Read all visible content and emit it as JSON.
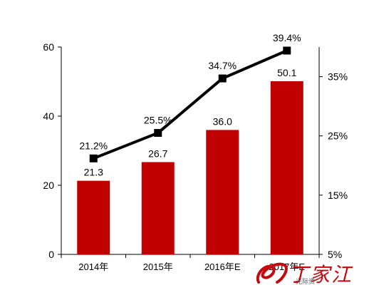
{
  "colors": {
    "bar": "#c00000",
    "line": "#000000",
    "axis": "#000000",
    "watermark": "#c3090d"
  },
  "watermark": {
    "text": "丁家江",
    "sub": "光际资"
  },
  "chart_data": {
    "type": "bar",
    "categories": [
      "2014年",
      "2015年",
      "2016年E",
      "2017年E"
    ],
    "series": [
      {
        "type": "bar",
        "axis": "left",
        "values": [
          21.3,
          26.7,
          36.0,
          50.1
        ],
        "labels": [
          "21.3",
          "26.7",
          "36.0",
          "50.1"
        ]
      },
      {
        "type": "line",
        "axis": "right",
        "values": [
          21.2,
          25.5,
          34.7,
          39.4
        ],
        "labels": [
          "21.2%",
          "25.5%",
          "34.7%",
          "39.4%"
        ],
        "marker": "square"
      }
    ],
    "y_left": {
      "min": 0,
      "max": 60,
      "ticks": [
        0,
        20,
        40,
        60
      ],
      "tick_labels": [
        "0",
        "20",
        "40",
        "60"
      ]
    },
    "y_right": {
      "min": 5,
      "max": 40,
      "ticks": [
        5,
        15,
        25,
        35
      ],
      "tick_labels": [
        "5%",
        "15%",
        "25%",
        "35%"
      ]
    },
    "title": "",
    "xlabel": "",
    "ylabel": "",
    "grid": false,
    "legend": "none"
  }
}
